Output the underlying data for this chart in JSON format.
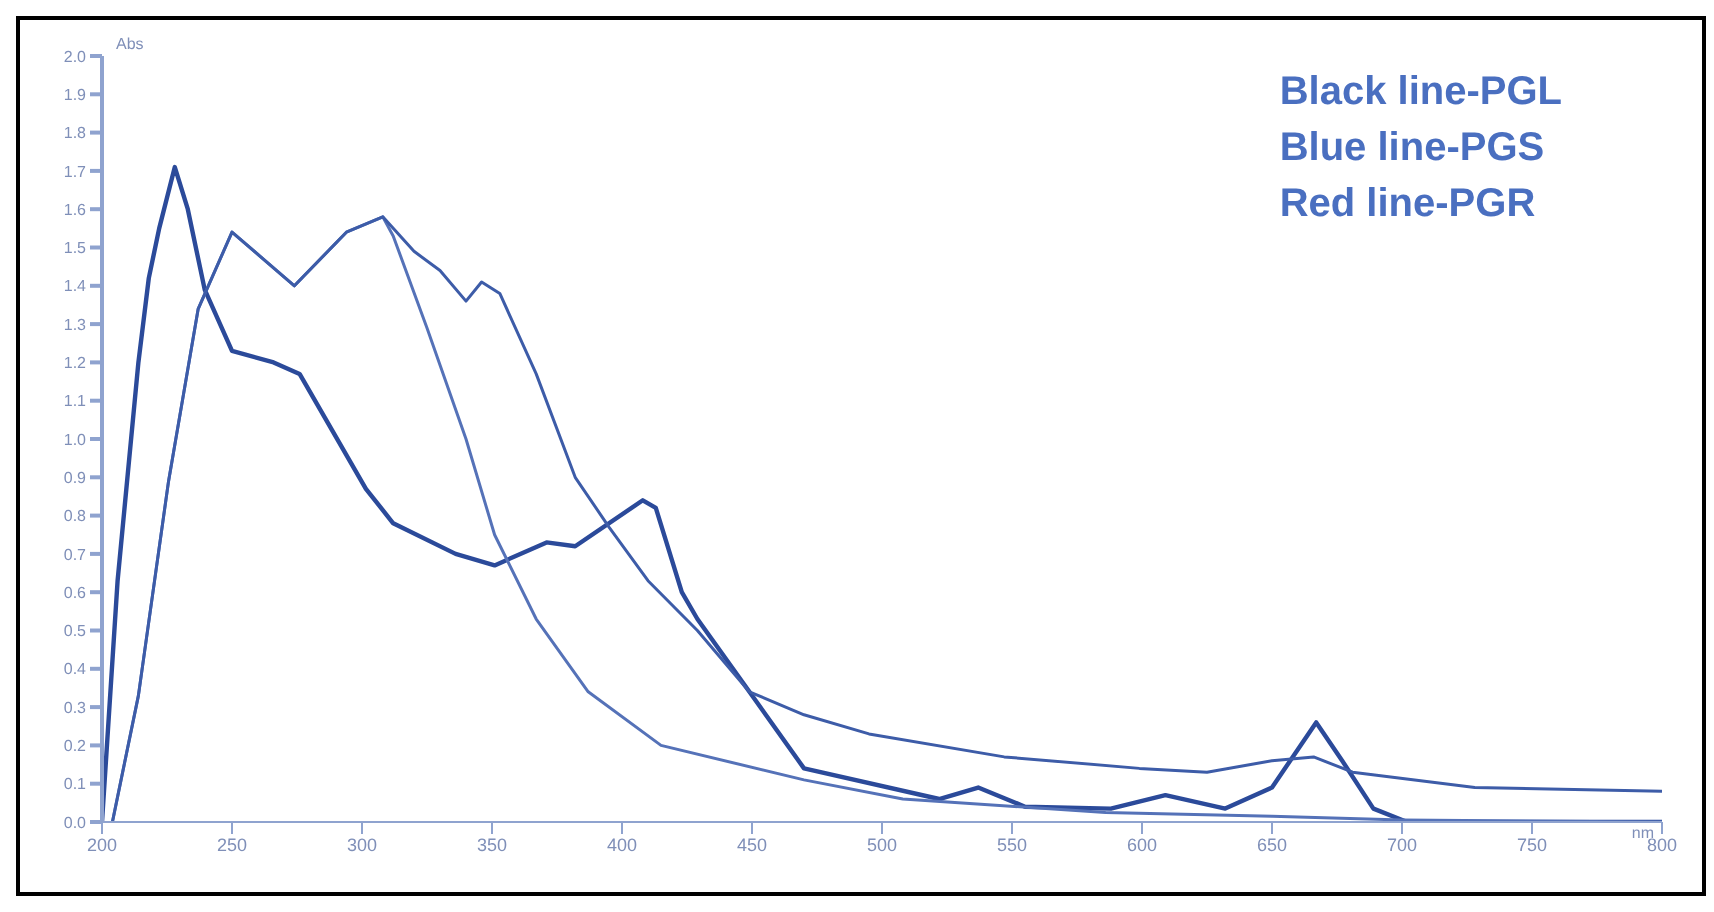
{
  "chart_data": {
    "type": "line",
    "xlabel": "nm",
    "ylabel": "Abs",
    "annotations": [
      "Black line-PGL",
      "Blue line-PGS",
      "Red line-PGR"
    ],
    "xlim": [
      200,
      800
    ],
    "xticks": [
      200,
      250,
      300,
      350,
      400,
      450,
      500,
      550,
      600,
      650,
      700,
      750,
      800
    ],
    "ylim": [
      0,
      2
    ],
    "yticks": [
      {
        "value": 0,
        "label": "0.0"
      },
      0.1,
      0.2,
      0.3,
      0.4,
      0.5,
      0.6,
      0.7,
      0.8,
      0.9,
      {
        "value": 1,
        "label": "1.0"
      },
      1.1,
      1.2,
      1.3,
      1.4,
      1.5,
      1.6,
      1.7,
      1.8,
      1.9,
      {
        "value": 2,
        "label": "2.0"
      }
    ],
    "grid": false,
    "legend": false,
    "marker": "none",
    "line_style": "solid",
    "series": [
      {
        "color": "#2b4a9a",
        "x": [
          200,
          206,
          214,
          218,
          222,
          228,
          233,
          239.5,
          250,
          266,
          276,
          301.5,
          312,
          336,
          351,
          371,
          382,
          408,
          413,
          423,
          429,
          449,
          470,
          522,
          537,
          555,
          588,
          609,
          632,
          650,
          667,
          677,
          689,
          702,
          800
        ],
        "values": [
          0,
          0.63,
          1.2,
          1.42,
          1.55,
          1.71,
          1.6,
          1.39,
          1.23,
          1.2,
          1.17,
          0.87,
          0.78,
          0.7,
          0.67,
          0.73,
          0.72,
          0.84,
          0.82,
          0.6,
          0.53,
          0.34,
          0.14,
          0.06,
          0.09,
          0.04,
          0.035,
          0.07,
          0.035,
          0.09,
          0.26,
          0.16,
          0.035,
          0,
          0
        ]
      },
      {
        "color": "#5572b8",
        "x": [
          204,
          214,
          225.6,
          237,
          250,
          274,
          294,
          308,
          312,
          325,
          340,
          351,
          367,
          387,
          415,
          470,
          508,
          586,
          650,
          700,
          800
        ],
        "values": [
          0,
          0.33,
          0.89,
          1.34,
          1.54,
          1.4,
          1.54,
          1.58,
          1.53,
          1.29,
          1,
          0.75,
          0.53,
          0.34,
          0.2,
          0.11,
          0.06,
          0.025,
          0.015,
          0.005,
          0
        ]
      },
      {
        "color": "#3d5ca8",
        "x": [
          204,
          214,
          225.6,
          237,
          250,
          274,
          294,
          308,
          320,
          330,
          340,
          346,
          353,
          367,
          382,
          395,
          410,
          429,
          449,
          470,
          495,
          547,
          599,
          625,
          650,
          666,
          681,
          728,
          800
        ],
        "values": [
          0,
          0.33,
          0.89,
          1.34,
          1.54,
          1.4,
          1.54,
          1.58,
          1.49,
          1.44,
          1.36,
          1.41,
          1.38,
          1.17,
          0.9,
          0.77,
          0.63,
          0.5,
          0.34,
          0.28,
          0.23,
          0.17,
          0.14,
          0.13,
          0.16,
          0.17,
          0.13,
          0.09,
          0.08
        ]
      }
    ]
  }
}
